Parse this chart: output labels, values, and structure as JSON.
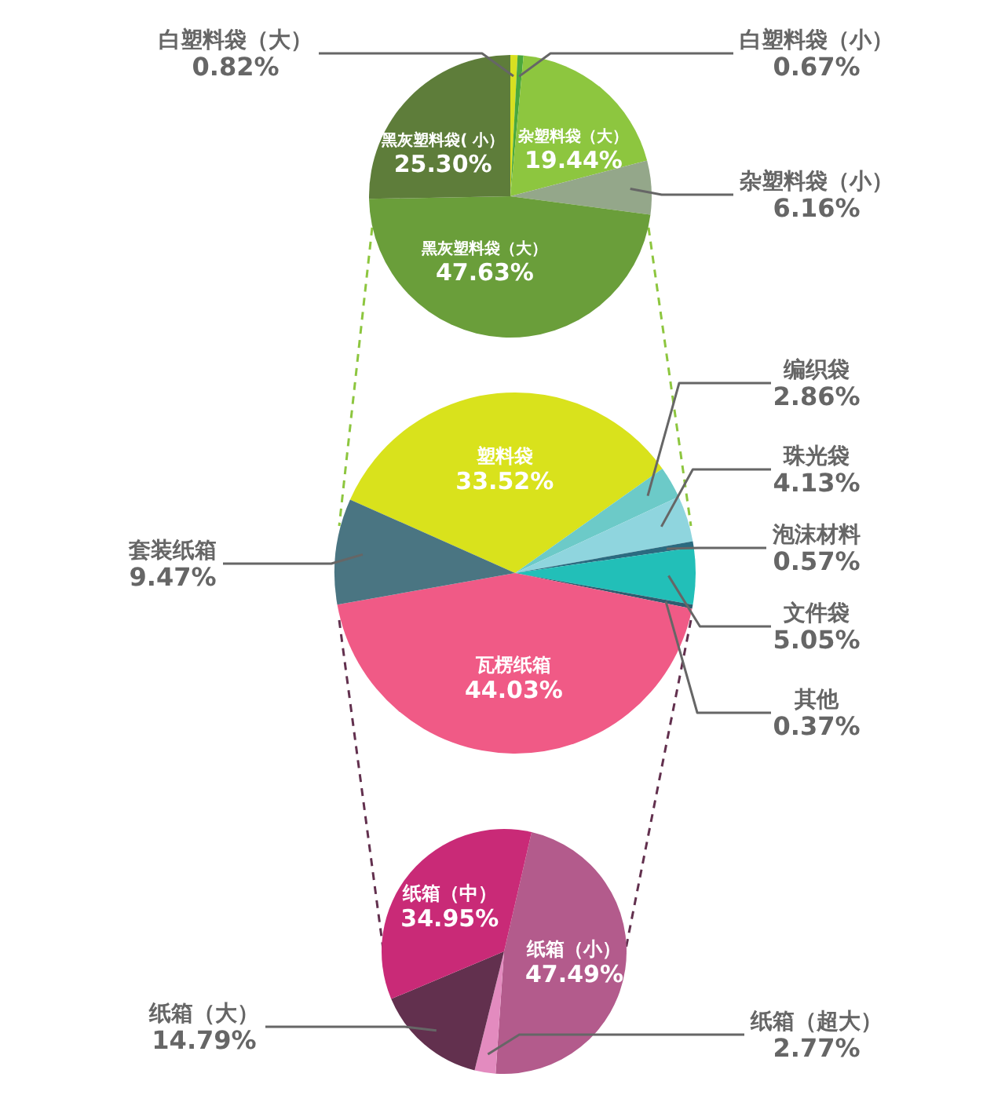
{
  "chart_data": [
    {
      "type": "pie",
      "categories": [
        "白塑料袋（大）",
        "白塑料袋（小）",
        "杂塑料袋（大）",
        "杂塑料袋（小）",
        "黑灰塑料袋（大）",
        "黑灰塑料袋( 小）"
      ],
      "values": [
        0.82,
        0.67,
        19.44,
        6.16,
        47.63,
        25.3
      ],
      "value_labels": [
        "0.82%",
        "0.67%",
        "19.44%",
        "6.16%",
        "47.63%",
        "25.30%"
      ],
      "colors": [
        "#d8e021",
        "#4aa83c",
        "#8dc63f",
        "#94a78a",
        "#6a9e3a",
        "#5e7d3a"
      ]
    },
    {
      "type": "pie",
      "categories": [
        "塑料袋",
        "编织袋",
        "珠光袋",
        "泡沫材料",
        "文件袋",
        "其他",
        "瓦楞纸箱",
        "套装纸箱"
      ],
      "values": [
        33.52,
        2.86,
        4.13,
        0.57,
        5.05,
        0.37,
        44.03,
        9.47
      ],
      "value_labels": [
        "33.52%",
        "2.86%",
        "4.13%",
        "0.57%",
        "5.05%",
        "0.37%",
        "44.03%",
        "9.47%"
      ],
      "colors": [
        "#d9e21c",
        "#6ccac8",
        "#8fd5de",
        "#2b6b80",
        "#22bfb8",
        "#2f5d70",
        "#f05a86",
        "#4a7582"
      ]
    },
    {
      "type": "pie",
      "categories": [
        "纸箱（小）",
        "纸箱（超大）",
        "纸箱（大）",
        "纸箱（中）"
      ],
      "values": [
        47.49,
        2.77,
        14.79,
        34.95
      ],
      "value_labels": [
        "47.49%",
        "2.77%",
        "14.79%",
        "34.95%"
      ],
      "colors": [
        "#b35b8c",
        "#e38bbf",
        "#62304e",
        "#c92a77"
      ]
    }
  ]
}
